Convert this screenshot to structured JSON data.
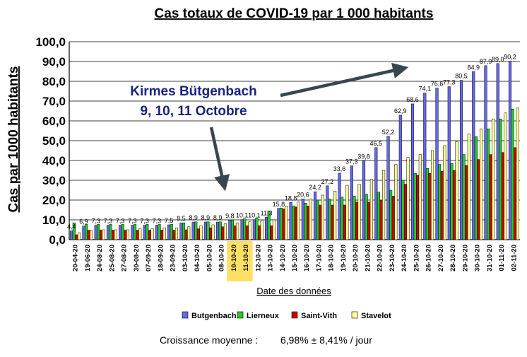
{
  "chart_data": {
    "type": "bar",
    "title": "Cas totaux de COVID-19 par 1 000 habitants",
    "xlabel": "Date des données",
    "ylabel": "Cas par 1000 habitants",
    "ylim": [
      0,
      100
    ],
    "yticks": [
      "0,0",
      "10,0",
      "20,0",
      "30,0",
      "40,0",
      "50,0",
      "60,0",
      "70,0",
      "80,0",
      "90,0",
      "100,0"
    ],
    "grid": true,
    "legend_position": "bottom",
    "categories": [
      "20-04-20",
      "19-06-20",
      "24-08-20",
      "25-08-20",
      "27-08-20",
      "30-08-20",
      "07-09-20",
      "18-09-20",
      "23-09-20",
      "03-10-20",
      "04-10-20",
      "05-10-20",
      "08-10-20",
      "10-10-20",
      "11-10-20",
      "12-10-20",
      "13-10-20",
      "14-10-20",
      "15-10-20",
      "16-10-20",
      "17-10-20",
      "18-10-20",
      "19-10-20",
      "20-10-20",
      "21-10-20",
      "22-10-20",
      "23-10-20",
      "24-10-20",
      "25-10-20",
      "26-10-20",
      "27-10-20",
      "28-10-20",
      "29-10-20",
      "30-10-20",
      "31-10-20",
      "01-11-20",
      "02-11-20"
    ],
    "highlighted_categories": [
      "10-10-20",
      "11-10-20"
    ],
    "series": [
      {
        "name": "Butgenbach",
        "color": "#6666ee",
        "values": [
          4.4,
          6.9,
          7.3,
          7.3,
          7.3,
          7.3,
          7.3,
          7.3,
          7.5,
          8.5,
          8.9,
          8.9,
          8.9,
          9.8,
          10.1,
          10.1,
          11.3,
          15.8,
          18.8,
          20.6,
          24.2,
          27.2,
          33.6,
          37.3,
          39.8,
          46.5,
          52.2,
          62.9,
          68.6,
          74.1,
          76.6,
          77.3,
          80.5,
          84.9,
          87.9,
          89.0,
          90.2
        ],
        "labels": [
          "4,4",
          "6,9",
          "7,3",
          "7,3",
          "7,3",
          "7,3",
          "7,3",
          "7,3",
          "7,5",
          "8,5",
          "8,9",
          "8,9",
          "8,9",
          "9,8",
          "10,1",
          "10,1",
          "11,3",
          "15,8",
          "18,8",
          "20,6",
          "24,2",
          "27,2",
          "33,6",
          "37,3",
          "39,8",
          "46,5",
          "52,2",
          "62,9",
          "68,6",
          "74,1",
          "76,6",
          "77,3",
          "80,5",
          "84,9",
          "87,9",
          "89,0",
          "90,2"
        ]
      },
      {
        "name": "Lierneux",
        "color": "#22cc22",
        "values": [
          8.5,
          7.7,
          7.7,
          7.7,
          7.7,
          7.7,
          7.7,
          7.7,
          7.7,
          8.5,
          9.0,
          9.0,
          9.0,
          10.0,
          10.5,
          11.0,
          14.5,
          16.0,
          17.0,
          18.5,
          20.0,
          20.5,
          21.5,
          22.0,
          23.0,
          24.0,
          25.0,
          30.0,
          33.5,
          36.0,
          38.0,
          38.5,
          43.0,
          52.0,
          56.0,
          61.0,
          66.0
        ]
      },
      {
        "name": "Saint-Vith",
        "color": "#cc0000",
        "values": [
          2.5,
          4.8,
          4.8,
          4.8,
          4.8,
          4.8,
          4.8,
          4.8,
          4.8,
          5.0,
          5.5,
          6.0,
          6.5,
          7.0,
          7.0,
          7.0,
          7.0,
          15.5,
          16.5,
          17.0,
          17.5,
          17.5,
          17.5,
          19.0,
          19.0,
          20.0,
          22.0,
          28.0,
          32.5,
          33.5,
          34.5,
          35.0,
          37.5,
          40.5,
          43.0,
          44.0,
          46.5
        ]
      },
      {
        "name": "Stavelot",
        "color": "#ffff99",
        "values": [
          3.5,
          4.5,
          5.0,
          5.0,
          5.0,
          5.5,
          5.5,
          6.0,
          6.0,
          6.5,
          7.0,
          7.5,
          8.0,
          8.5,
          9.0,
          9.5,
          10.0,
          17.0,
          19.0,
          20.5,
          22.5,
          24.5,
          27.5,
          28.0,
          30.5,
          35.0,
          38.0,
          41.5,
          43.0,
          45.0,
          47.5,
          49.5,
          53.5,
          56.0,
          61.0,
          64.0,
          66.5
        ]
      }
    ],
    "annotation": {
      "line1": "Kirmes Bütgenbach",
      "line2": "9, 10, 11 Octobre"
    },
    "footer": {
      "label": "Croissance moyenne :",
      "value": "6,98%  ± 8,41% / jour"
    }
  }
}
